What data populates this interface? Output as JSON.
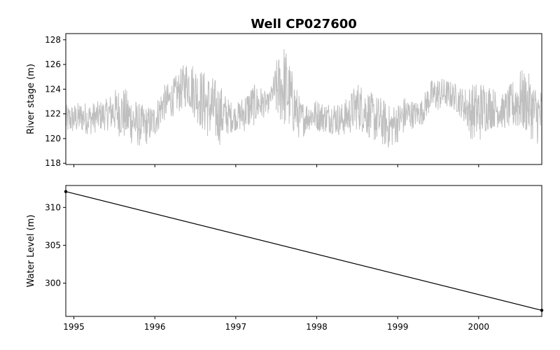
{
  "chart_data": [
    {
      "type": "line",
      "title": "Well CP027600",
      "xlabel": "",
      "ylabel": "River stage (m)",
      "xlim": [
        1994.9,
        2000.78
      ],
      "ylim": [
        117.9,
        128.5
      ],
      "yticks": [
        118,
        120,
        122,
        124,
        126,
        128
      ],
      "xticks": [
        1995,
        1996,
        1997,
        1998,
        1999,
        2000
      ],
      "grid": false,
      "series": [
        {
          "color": "#bfbfbf",
          "envelope": {
            "x": [
              1994.9,
              1995.0,
              1995.1,
              1995.2,
              1995.3,
              1995.4,
              1995.5,
              1995.6,
              1995.7,
              1995.8,
              1995.9,
              1996.0,
              1996.1,
              1996.2,
              1996.3,
              1996.4,
              1996.5,
              1996.6,
              1996.7,
              1996.8,
              1996.9,
              1997.0,
              1997.1,
              1997.2,
              1997.3,
              1997.4,
              1997.45,
              1997.5,
              1997.6,
              1997.7,
              1997.8,
              1997.9,
              1998.0,
              1998.1,
              1998.2,
              1998.3,
              1998.4,
              1998.5,
              1998.6,
              1998.7,
              1998.8,
              1998.9,
              1999.0,
              1999.1,
              1999.2,
              1999.3,
              1999.4,
              1999.5,
              1999.6,
              1999.7,
              1999.8,
              1999.9,
              2000.0,
              2000.1,
              2000.2,
              2000.3,
              2000.4,
              2000.5,
              2000.6,
              2000.7,
              2000.78
            ],
            "low": [
              120.2,
              120.3,
              120.4,
              120.2,
              120.5,
              120.6,
              120.4,
              119.8,
              119.4,
              119.2,
              119.4,
              120.0,
              121.2,
              121.6,
              122.0,
              122.5,
              121.4,
              120.2,
              119.6,
              119.3,
              120.2,
              120.6,
              120.4,
              120.8,
              121.3,
              122.0,
              122.8,
              121.4,
              120.6,
              120.2,
              119.8,
              120.6,
              120.5,
              120.4,
              120.3,
              120.1,
              120.2,
              120.6,
              120.2,
              119.6,
              119.3,
              119.0,
              119.6,
              120.4,
              120.8,
              121.0,
              122.0,
              122.1,
              122.4,
              122.2,
              121.5,
              119.9,
              119.4,
              120.5,
              120.8,
              120.7,
              120.6,
              120.4,
              120.2,
              119.4,
              119.3
            ],
            "high": [
              122.8,
              122.9,
              123.1,
              123.0,
              123.1,
              123.3,
              124.1,
              124.4,
              123.8,
              123.0,
              122.7,
              122.9,
              124.4,
              124.7,
              125.6,
              126.6,
              126.2,
              125.7,
              125.3,
              124.7,
              123.4,
              122.8,
              123.7,
              124.5,
              124.4,
              123.6,
              124.6,
              126.5,
              128.0,
              125.6,
              123.2,
              123.1,
              123.3,
              123.0,
              123.2,
              122.9,
              123.6,
              124.8,
              124.3,
              123.7,
              123.5,
              122.8,
              123.0,
              123.6,
              123.1,
              123.3,
              124.8,
              125.1,
              124.9,
              124.6,
              124.2,
              124.5,
              124.9,
              124.8,
              124.1,
              123.7,
              124.6,
              125.8,
              125.6,
              124.6,
              124.2
            ]
          }
        }
      ]
    },
    {
      "type": "line",
      "xlabel": "",
      "ylabel": "Water Level (m)",
      "xlim": [
        1994.9,
        2000.78
      ],
      "ylim": [
        295.6,
        312.9
      ],
      "yticks": [
        300,
        305,
        310
      ],
      "xticks": [
        1995,
        1996,
        1997,
        1998,
        1999,
        2000
      ],
      "xticklabels": [
        "1995",
        "1996",
        "1997",
        "1998",
        "1999",
        "2000"
      ],
      "grid": false,
      "series": [
        {
          "color": "#000000",
          "x": [
            1994.9,
            2000.78
          ],
          "y": [
            312.1,
            296.4
          ]
        }
      ]
    }
  ]
}
